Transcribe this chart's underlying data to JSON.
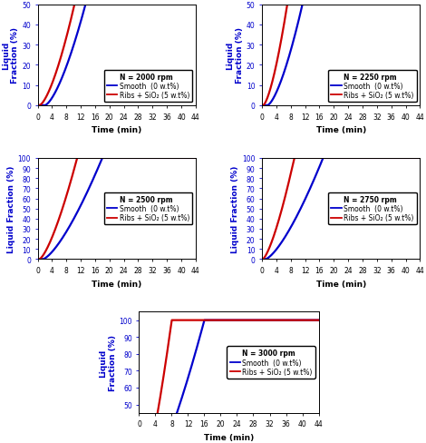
{
  "subplots": [
    {
      "title": "N = 2000 rpm",
      "ylim": [
        0,
        50
      ],
      "yticks": [
        0,
        10,
        20,
        30,
        40,
        50
      ],
      "ylabel": "Liquid\nFraction (%)",
      "blue_t0": 2.0,
      "blue_t1": 20.0,
      "red_t0": 0.5,
      "red_t1": 16.0,
      "blue_pow": 1.5,
      "red_pow": 1.5
    },
    {
      "title": "N = 2250 rpm",
      "ylim": [
        0,
        50
      ],
      "yticks": [
        0,
        10,
        20,
        30,
        40,
        50
      ],
      "ylabel": "Liquid\nFraction (%)",
      "blue_t0": 1.5,
      "blue_t1": 17.0,
      "red_t0": 0.3,
      "red_t1": 11.0,
      "blue_pow": 1.5,
      "red_pow": 1.5
    },
    {
      "title": "N = 2500 rpm",
      "ylim": [
        0,
        100
      ],
      "yticks": [
        0,
        10,
        20,
        30,
        40,
        50,
        60,
        70,
        80,
        90,
        100
      ],
      "ylabel": "Liquid Fraction (%)",
      "blue_t0": 1.5,
      "blue_t1": 18.0,
      "red_t0": 0.5,
      "red_t1": 11.0,
      "blue_pow": 1.4,
      "red_pow": 1.4
    },
    {
      "title": "N = 2750 rpm",
      "ylim": [
        0,
        100
      ],
      "yticks": [
        0,
        10,
        20,
        30,
        40,
        50,
        60,
        70,
        80,
        90,
        100
      ],
      "ylabel": "Liquid Fraction (%)",
      "blue_t0": 1.0,
      "blue_t1": 17.0,
      "red_t0": 0.2,
      "red_t1": 9.0,
      "blue_pow": 1.4,
      "red_pow": 1.4
    },
    {
      "title": "N = 3000 rpm",
      "ylim": [
        45,
        105
      ],
      "yticks": [
        50,
        60,
        70,
        80,
        90,
        100
      ],
      "ylabel": "Liquid\nFraction (%)",
      "blue_t0": 0.5,
      "blue_t1": 16.0,
      "red_t0": 0.0,
      "red_t1": 8.0,
      "blue_pow": 1.4,
      "red_pow": 1.4
    }
  ],
  "xlim": [
    0,
    44
  ],
  "xticks": [
    0,
    4,
    8,
    12,
    16,
    20,
    24,
    28,
    32,
    36,
    40,
    44
  ],
  "xlabel": "Time (min)",
  "blue_color": "#0000CC",
  "red_color": "#CC0000",
  "blue_label": "Smooth  (0 w.t%)",
  "red_label": "Ribs + SiO₂ (5 w.t%)",
  "legend_fontsize": 5.5,
  "axis_fontsize": 6.5,
  "tick_fontsize": 5.5,
  "linewidth": 1.6,
  "background_color": "#ffffff"
}
